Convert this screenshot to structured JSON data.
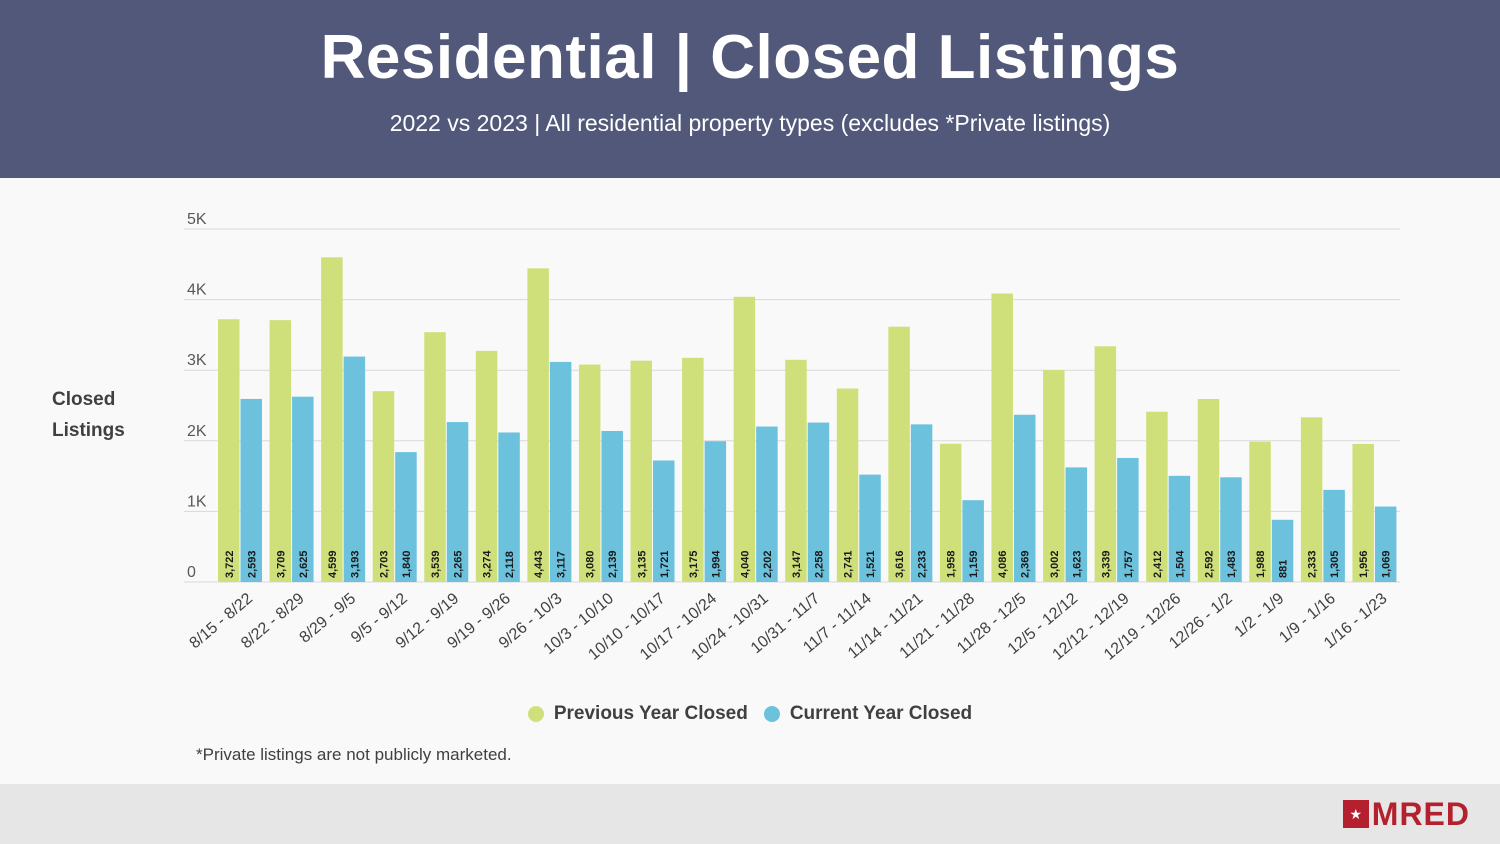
{
  "header": {
    "title": "Residential | Closed Listings",
    "subtitle": "2022 vs 2023 | All residential property types (excludes *Private listings)"
  },
  "footnote": "*Private listings are not publicly marketed.",
  "logo": {
    "text": "MRED",
    "mark": "star-icon"
  },
  "colors": {
    "previous": "#cfe07b",
    "current": "#6cc2dd",
    "header": "#525879",
    "brand": "#b5202e"
  },
  "chart_data": {
    "type": "bar",
    "title": "Residential | Closed Listings",
    "ylabel": "Closed Listings",
    "ylabel_lines": [
      "Closed",
      "Listings"
    ],
    "xlabel": "",
    "ylim": [
      0,
      5000
    ],
    "yticks": [
      {
        "value": 0,
        "label": "0"
      },
      {
        "value": 1000,
        "label": "1K"
      },
      {
        "value": 2000,
        "label": "2K"
      },
      {
        "value": 3000,
        "label": "3K"
      },
      {
        "value": 4000,
        "label": "4K"
      },
      {
        "value": 5000,
        "label": "5K"
      }
    ],
    "grid": true,
    "legend_position": "bottom",
    "categories": [
      "8/15 - 8/22",
      "8/22 - 8/29",
      "8/29 - 9/5",
      "9/5 - 9/12",
      "9/12 - 9/19",
      "9/19 - 9/26",
      "9/26 - 10/3",
      "10/3 - 10/10",
      "10/10 - 10/17",
      "10/17 - 10/24",
      "10/24 - 10/31",
      "10/31 - 11/7",
      "11/7 - 11/14",
      "11/14 - 11/21",
      "11/21 - 11/28",
      "11/28 - 12/5",
      "12/5 - 12/12",
      "12/12 - 12/19",
      "12/19 - 12/26",
      "12/26 - 1/2",
      "1/2 - 1/9",
      "1/9 - 1/16",
      "1/16 - 1/23"
    ],
    "series": [
      {
        "name": "Previous Year Closed",
        "values": [
          3722,
          3709,
          4599,
          2703,
          3539,
          3274,
          4443,
          3080,
          3135,
          3175,
          4040,
          3147,
          2741,
          3616,
          1958,
          4086,
          3002,
          3339,
          2412,
          2592,
          1988,
          2333,
          1956
        ],
        "labels": [
          "3,722",
          "3,709",
          "4,599",
          "2,703",
          "3,539",
          "3,274",
          "4,443",
          "3,080",
          "3,135",
          "3,175",
          "4,040",
          "3,147",
          "2,741",
          "3,616",
          "1,958",
          "4,086",
          "3,002",
          "3,339",
          "2,412",
          "2,592",
          "1,988",
          "2,333",
          "1,956"
        ]
      },
      {
        "name": "Current Year Closed",
        "values": [
          2593,
          2625,
          3193,
          1840,
          2265,
          2118,
          3117,
          2139,
          1721,
          1994,
          2202,
          2258,
          1521,
          2233,
          1159,
          2369,
          1623,
          1757,
          1504,
          1483,
          881,
          1305,
          1069
        ],
        "labels": [
          "2,593",
          "2,625",
          "3,193",
          "1,840",
          "2,265",
          "2,118",
          "3,117",
          "2,139",
          "1,721",
          "1,994",
          "2,202",
          "2,258",
          "1,521",
          "2,233",
          "1,159",
          "2,369",
          "1,623",
          "1,757",
          "1,504",
          "1,483",
          "881",
          "1,305",
          "1,069"
        ]
      }
    ]
  }
}
